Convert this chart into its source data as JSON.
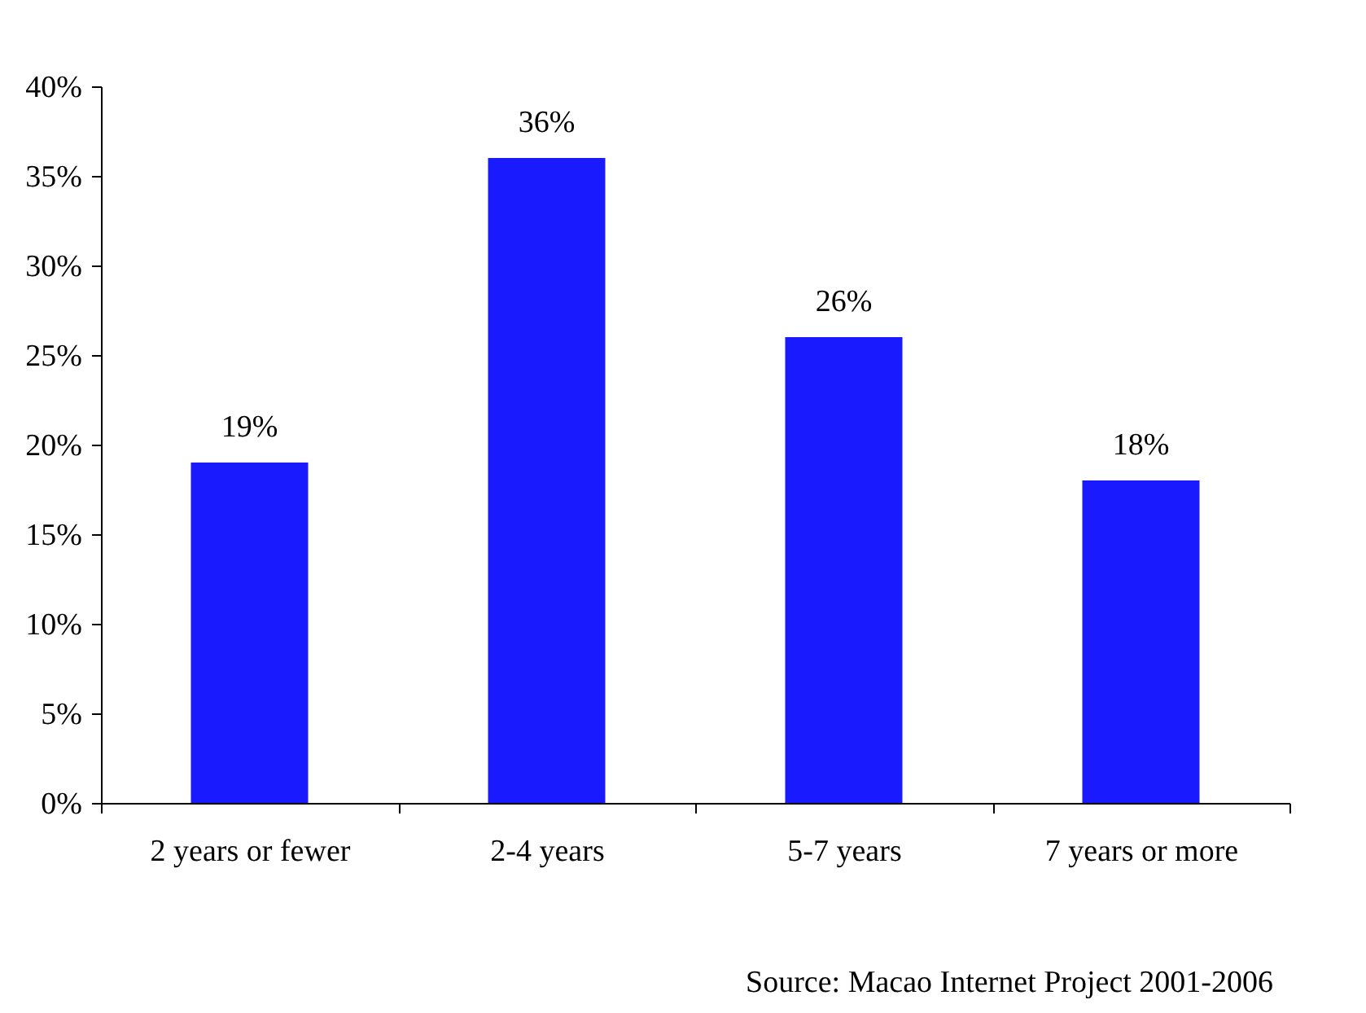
{
  "chart_data": {
    "type": "bar",
    "categories": [
      "2 years or fewer",
      "2-4 years",
      "5-7 years",
      "7 years or more"
    ],
    "values": [
      19,
      36,
      26,
      18
    ],
    "color": "#1a1aff",
    "value_labels": [
      "19%",
      "36%",
      "26%",
      "18%"
    ],
    "ylim": [
      0,
      40
    ],
    "yticks": [
      {
        "value": 0,
        "label": "0%"
      },
      {
        "value": 5,
        "label": "5%"
      },
      {
        "value": 10,
        "label": "10%"
      },
      {
        "value": 15,
        "label": "15%"
      },
      {
        "value": 20,
        "label": "20%"
      },
      {
        "value": 25,
        "label": "25%"
      },
      {
        "value": 30,
        "label": "30%"
      },
      {
        "value": 35,
        "label": "35%"
      },
      {
        "value": 40,
        "label": "40%"
      }
    ],
    "grid": false,
    "annotations": [
      "Source: Macao Internet Project 2001-2006"
    ]
  }
}
